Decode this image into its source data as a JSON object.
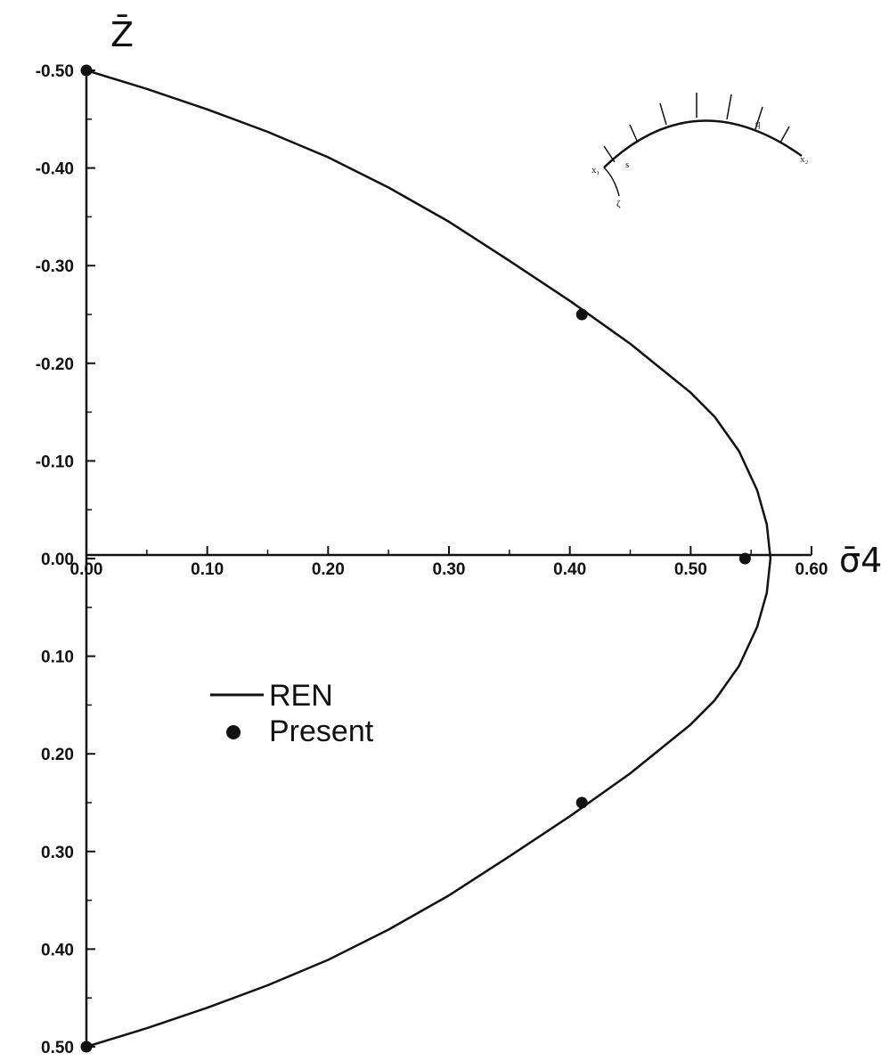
{
  "chart_data": {
    "type": "scatter",
    "title": "",
    "xlabel": "σ̄4",
    "ylabel": "Z̄",
    "xlim": [
      0.0,
      0.6
    ],
    "ylim": [
      -0.5,
      0.5
    ],
    "y_axis_inverted": true,
    "grid": false,
    "x_ticks": [
      "0.00",
      "0.10",
      "0.20",
      "0.30",
      "0.40",
      "0.50",
      "0.60"
    ],
    "y_ticks": [
      "-0.50",
      "-0.40",
      "-0.30",
      "-0.20",
      "-0.10",
      "0.00",
      "0.10",
      "0.20",
      "0.30",
      "0.40",
      "0.50"
    ],
    "legend": {
      "placement": "center-left"
    },
    "series": [
      {
        "name": "REN",
        "mode": "line",
        "x": [
          0.0,
          0.05,
          0.1,
          0.15,
          0.2,
          0.25,
          0.3,
          0.35,
          0.4,
          0.45,
          0.5,
          0.52,
          0.54,
          0.555,
          0.563,
          0.566,
          0.563,
          0.555,
          0.54,
          0.52,
          0.5,
          0.45,
          0.4,
          0.35,
          0.3,
          0.25,
          0.2,
          0.15,
          0.1,
          0.05,
          0.0
        ],
        "y": [
          -0.5,
          -0.481,
          -0.46,
          -0.437,
          -0.411,
          -0.38,
          -0.345,
          -0.305,
          -0.264,
          -0.22,
          -0.17,
          -0.145,
          -0.11,
          -0.07,
          -0.035,
          0.0,
          0.035,
          0.07,
          0.11,
          0.145,
          0.17,
          0.22,
          0.264,
          0.305,
          0.345,
          0.38,
          0.411,
          0.437,
          0.46,
          0.481,
          0.5
        ]
      },
      {
        "name": "Present",
        "mode": "markers",
        "x": [
          0.0,
          0.41,
          0.545,
          0.41,
          0.0
        ],
        "y": [
          -0.5,
          -0.25,
          0.0,
          0.25,
          0.5
        ]
      }
    ],
    "inset": {
      "labels": [
        "q",
        "s",
        "ζ",
        "x₁",
        "x₂"
      ]
    }
  }
}
